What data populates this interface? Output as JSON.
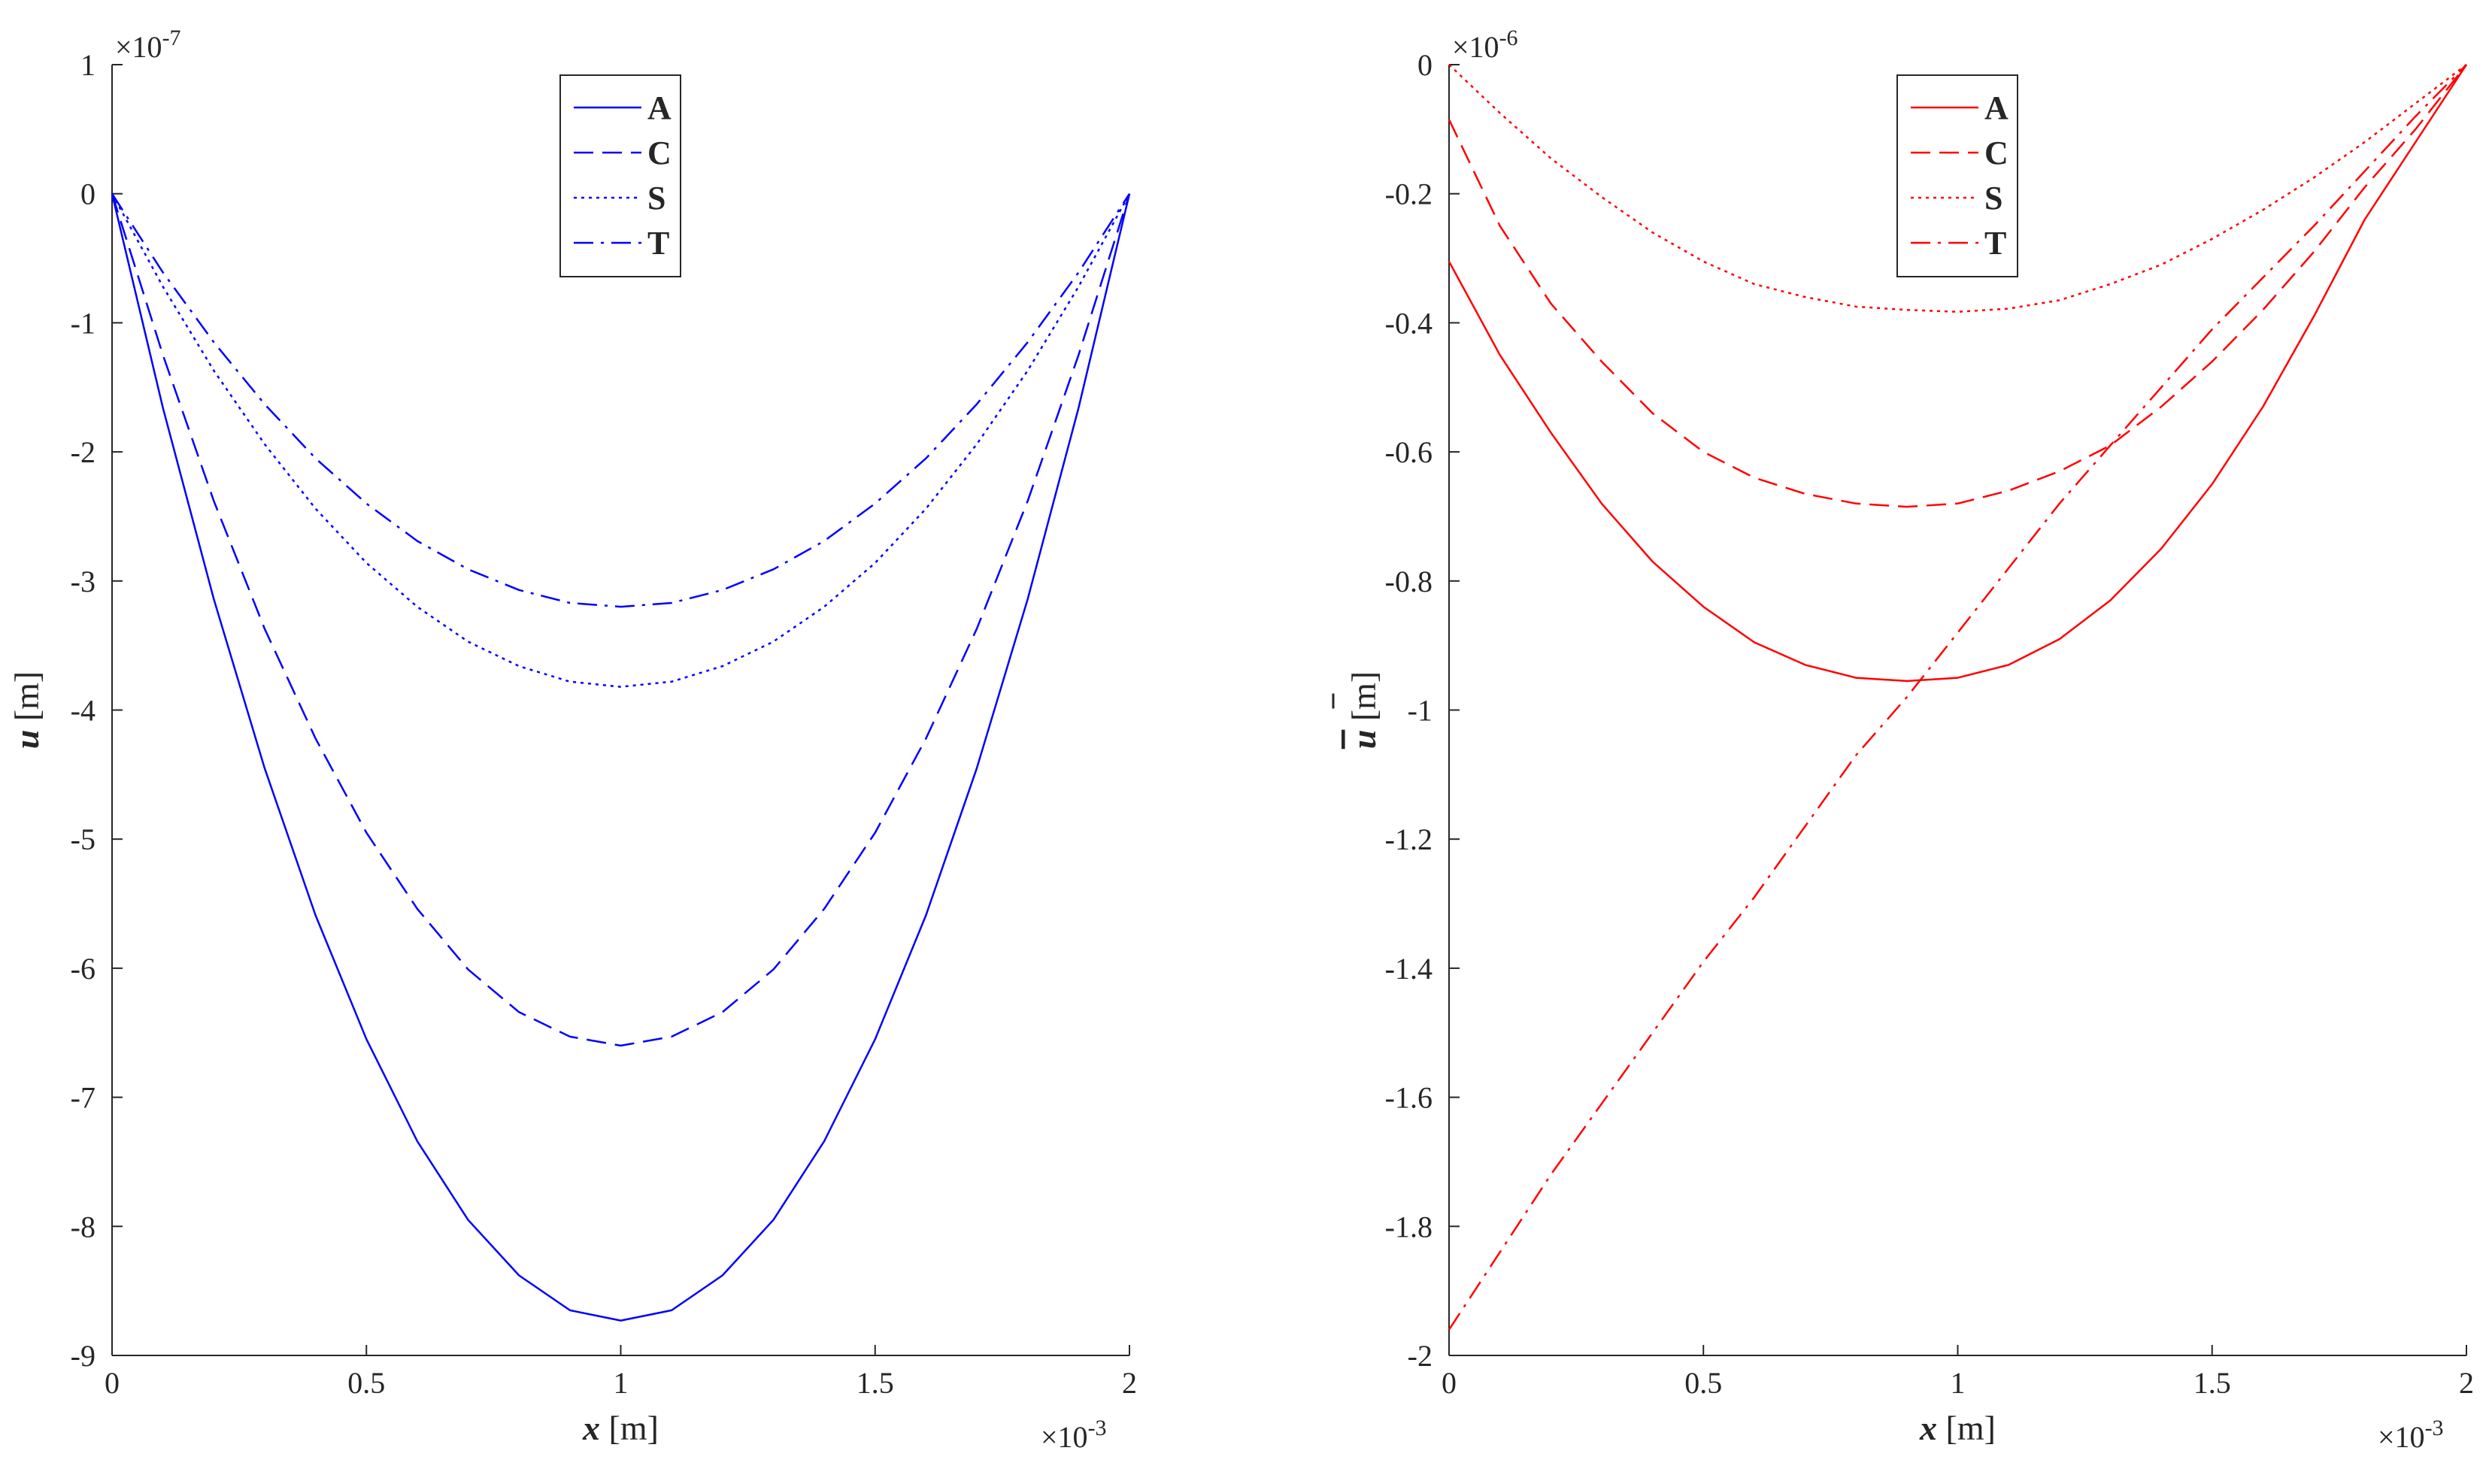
{
  "chart_data": [
    {
      "type": "line",
      "color": "#0000ff",
      "xlabel": {
        "symbol": "x",
        "unit": " [m]"
      },
      "ylabel": {
        "symbol": "u",
        "unit": " [m]",
        "overline": false
      },
      "x_multiplier": "×10",
      "x_exponent": "-3",
      "y_multiplier": "×10",
      "y_exponent": "-7",
      "xlim": [
        0,
        2
      ],
      "ylim": [
        -9,
        1
      ],
      "xticks": [
        0,
        0.5,
        1,
        1.5,
        2
      ],
      "xtick_labels": [
        "0",
        "0.5",
        "1",
        "1.5",
        "2"
      ],
      "yticks": [
        1,
        0,
        -1,
        -2,
        -3,
        -4,
        -5,
        -6,
        -7,
        -8,
        -9
      ],
      "ytick_labels": [
        "1",
        "0",
        "-1",
        "-2",
        "-3",
        "-4",
        "-5",
        "-6",
        "-7",
        "-8",
        "-9"
      ],
      "grid": false,
      "legend_position": "top-center",
      "x": [
        0,
        0.1,
        0.2,
        0.3,
        0.4,
        0.5,
        0.6,
        0.7,
        0.8,
        0.9,
        1.0,
        1.1,
        1.2,
        1.3,
        1.4,
        1.5,
        1.6,
        1.7,
        1.8,
        1.9,
        2.0
      ],
      "series": [
        {
          "name": "A",
          "dash": "solid",
          "values": [
            0,
            -1.66,
            -3.14,
            -4.45,
            -5.59,
            -6.55,
            -7.34,
            -7.95,
            -8.38,
            -8.65,
            -8.73,
            -8.65,
            -8.38,
            -7.95,
            -7.34,
            -6.55,
            -5.59,
            -4.45,
            -3.14,
            -1.66,
            0
          ]
        },
        {
          "name": "C",
          "dash": "dashed",
          "values": [
            0,
            -1.25,
            -2.38,
            -3.37,
            -4.22,
            -4.95,
            -5.54,
            -6.01,
            -6.34,
            -6.53,
            -6.6,
            -6.53,
            -6.34,
            -6.01,
            -5.54,
            -4.95,
            -4.22,
            -3.37,
            -2.38,
            -1.25,
            0
          ]
        },
        {
          "name": "S",
          "dash": "dotted",
          "values": [
            0,
            -0.72,
            -1.37,
            -1.94,
            -2.44,
            -2.86,
            -3.2,
            -3.47,
            -3.66,
            -3.78,
            -3.82,
            -3.78,
            -3.66,
            -3.47,
            -3.2,
            -2.86,
            -2.44,
            -1.94,
            -1.37,
            -0.72,
            0
          ]
        },
        {
          "name": "T",
          "dash": "dashdot",
          "values": [
            0,
            -0.61,
            -1.15,
            -1.63,
            -2.05,
            -2.4,
            -2.69,
            -2.91,
            -3.07,
            -3.17,
            -3.2,
            -3.17,
            -3.07,
            -2.91,
            -2.69,
            -2.4,
            -2.05,
            -1.63,
            -1.15,
            -0.61,
            0
          ]
        }
      ]
    },
    {
      "type": "line",
      "color": "#ff0000",
      "xlabel": {
        "symbol": "x",
        "unit": " [m]"
      },
      "ylabel": {
        "symbol": "u",
        "unit": " [m]",
        "overline": true
      },
      "x_multiplier": "×10",
      "x_exponent": "-3",
      "y_multiplier": "×10",
      "y_exponent": "-6",
      "xlim": [
        0,
        2
      ],
      "ylim": [
        -2,
        0
      ],
      "xticks": [
        0,
        0.5,
        1,
        1.5,
        2
      ],
      "xtick_labels": [
        "0",
        "0.5",
        "1",
        "1.5",
        "2"
      ],
      "yticks": [
        0,
        -0.2,
        -0.4,
        -0.6,
        -0.8,
        -1,
        -1.2,
        -1.4,
        -1.6,
        -1.8,
        -2
      ],
      "ytick_labels": [
        "0",
        "-0.2",
        "-0.4",
        "-0.6",
        "-0.8",
        "-1",
        "-1.2",
        "-1.4",
        "-1.6",
        "-1.8",
        "-2"
      ],
      "grid": false,
      "legend_position": "top-center",
      "x": [
        0,
        0.1,
        0.2,
        0.3,
        0.4,
        0.5,
        0.6,
        0.7,
        0.8,
        0.9,
        1.0,
        1.1,
        1.2,
        1.3,
        1.4,
        1.5,
        1.6,
        1.7,
        1.8,
        1.9,
        2.0
      ],
      "series": [
        {
          "name": "A",
          "dash": "solid",
          "values": [
            -0.305,
            -0.45,
            -0.57,
            -0.68,
            -0.77,
            -0.84,
            -0.895,
            -0.93,
            -0.95,
            -0.955,
            -0.95,
            -0.93,
            -0.89,
            -0.83,
            -0.75,
            -0.65,
            -0.53,
            -0.39,
            -0.24,
            -0.12,
            0
          ]
        },
        {
          "name": "C",
          "dash": "dashed",
          "values": [
            -0.085,
            -0.25,
            -0.37,
            -0.46,
            -0.54,
            -0.6,
            -0.64,
            -0.665,
            -0.68,
            -0.685,
            -0.68,
            -0.66,
            -0.63,
            -0.59,
            -0.53,
            -0.46,
            -0.38,
            -0.29,
            -0.19,
            -0.1,
            0
          ]
        },
        {
          "name": "S",
          "dash": "dotted",
          "values": [
            0,
            -0.075,
            -0.145,
            -0.205,
            -0.26,
            -0.305,
            -0.34,
            -0.36,
            -0.375,
            -0.38,
            -0.383,
            -0.378,
            -0.365,
            -0.34,
            -0.31,
            -0.27,
            -0.225,
            -0.175,
            -0.12,
            -0.06,
            0
          ]
        },
        {
          "name": "T",
          "dash": "dashdot",
          "values": [
            -1.96,
            -1.84,
            -1.72,
            -1.61,
            -1.5,
            -1.39,
            -1.29,
            -1.18,
            -1.07,
            -0.98,
            -0.88,
            -0.78,
            -0.68,
            -0.59,
            -0.5,
            -0.41,
            -0.33,
            -0.25,
            -0.165,
            -0.08,
            0
          ]
        }
      ]
    }
  ]
}
